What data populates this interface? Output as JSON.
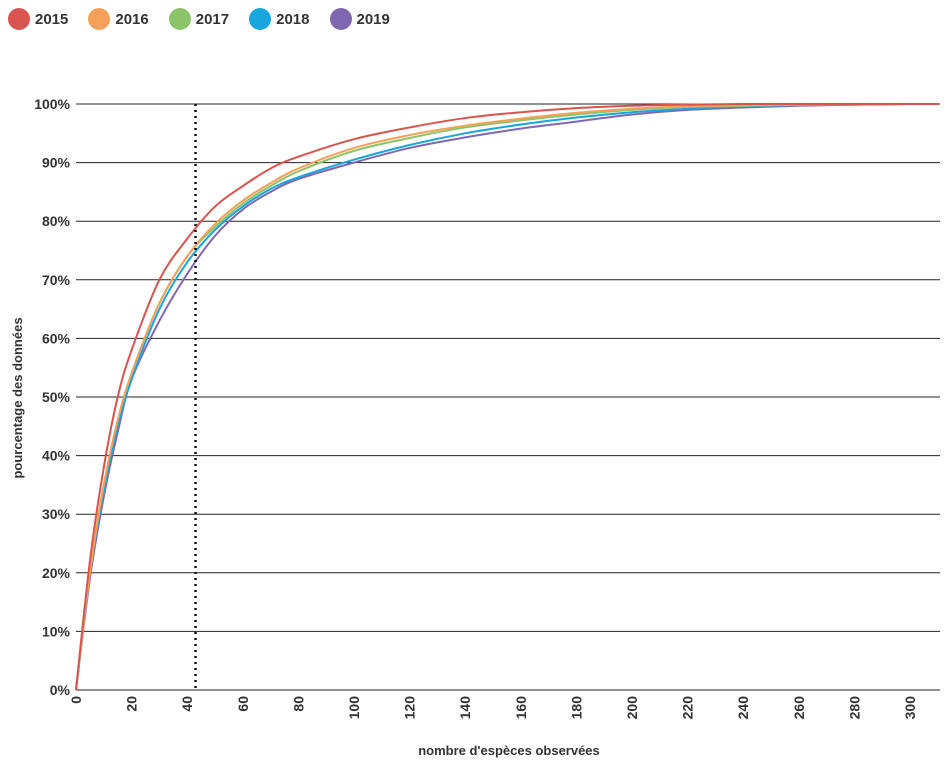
{
  "chart_data": {
    "type": "line",
    "xlabel": "nombre d'espèces observées",
    "ylabel": "pourcentage des données",
    "xlim": [
      0,
      310
    ],
    "ylim": [
      0,
      100
    ],
    "x_ticks": [
      "0",
      "20",
      "40",
      "60",
      "80",
      "100",
      "120",
      "140",
      "160",
      "180",
      "200",
      "220",
      "240",
      "260",
      "280",
      "300"
    ],
    "y_ticks": [
      "0%",
      "10%",
      "20%",
      "30%",
      "40%",
      "50%",
      "60%",
      "70%",
      "80%",
      "90%",
      "100%"
    ],
    "grid": "horizontal",
    "legend_position": "top-left",
    "reference_line_x": 43,
    "x": [
      0,
      5,
      10,
      15,
      20,
      30,
      40,
      50,
      60,
      70,
      80,
      100,
      120,
      140,
      160,
      180,
      200,
      220,
      240,
      260,
      280,
      300,
      310
    ],
    "series": [
      {
        "name": "2015",
        "color": "#d9534f",
        "values": [
          0,
          22,
          38,
          50,
          58,
          70,
          77,
          82.5,
          86,
          89,
          91,
          94,
          96,
          97.6,
          98.6,
          99.3,
          99.7,
          99.9,
          100,
          100,
          100,
          100,
          100
        ]
      },
      {
        "name": "2016",
        "color": "#f5a05a",
        "values": [
          0,
          20,
          35,
          46,
          54,
          66,
          74,
          79.5,
          83.5,
          86.5,
          89,
          92.5,
          94.7,
          96.3,
          97.5,
          98.5,
          99.2,
          99.6,
          99.8,
          99.9,
          100,
          100,
          100
        ]
      },
      {
        "name": "2017",
        "color": "#8cc46a",
        "values": [
          0,
          20,
          35,
          46,
          54,
          66,
          74,
          79,
          83,
          86,
          88.5,
          92,
          94.2,
          96,
          97.2,
          98.2,
          99,
          99.5,
          99.7,
          99.9,
          100,
          100,
          100
        ]
      },
      {
        "name": "2018",
        "color": "#17a6dd",
        "values": [
          0,
          20,
          34,
          45,
          53,
          65,
          73,
          78.5,
          82.5,
          85.5,
          87.5,
          90.5,
          93,
          95,
          96.5,
          97.7,
          98.6,
          99.2,
          99.6,
          99.8,
          99.9,
          100,
          100
        ]
      },
      {
        "name": "2019",
        "color": "#8068b1",
        "values": [
          0,
          19,
          33,
          44,
          53,
          63,
          71,
          77.5,
          82,
          85,
          87.2,
          90,
          92.5,
          94.3,
          95.8,
          97,
          98.2,
          99,
          99.4,
          99.7,
          99.9,
          100,
          100
        ]
      }
    ]
  }
}
